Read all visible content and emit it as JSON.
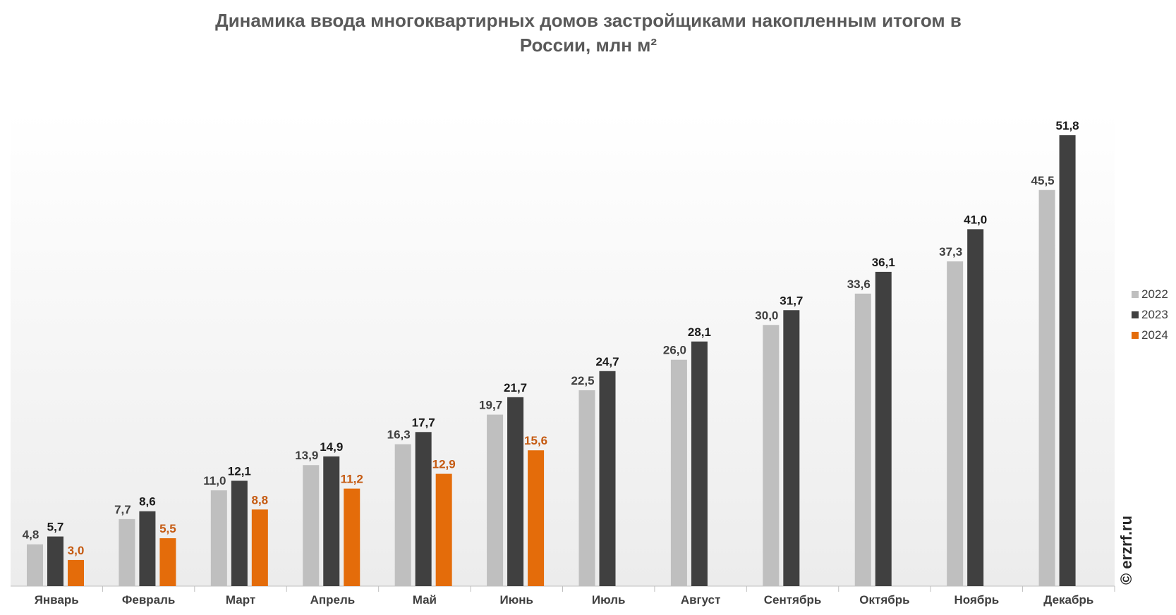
{
  "chart_data": {
    "type": "bar",
    "title": "Динамика ввода многоквартирных домов застройщиками накопленным итогом в России, млн м²",
    "title_lines": [
      "Динамика ввода многоквартирных домов застройщиками накопленным итогом в",
      "России, млн м²"
    ],
    "categories": [
      "Январь",
      "Февраль",
      "Март",
      "Апрель",
      "Май",
      "Июнь",
      "Июль",
      "Август",
      "Сентябрь",
      "Октябрь",
      "Ноябрь",
      "Декабрь"
    ],
    "series": [
      {
        "name": "2022",
        "color": "#bfbfbf",
        "label_color": "#404040",
        "values": [
          4.8,
          7.7,
          11.0,
          13.9,
          16.3,
          19.7,
          22.5,
          26.0,
          30.0,
          33.6,
          37.3,
          45.5
        ],
        "labels": [
          "4,8",
          "7,7",
          "11,0",
          "13,9",
          "16,3",
          "19,7",
          "22,5",
          "26,0",
          "30,0",
          "33,6",
          "37,3",
          "45,5"
        ]
      },
      {
        "name": "2023",
        "color": "#404040",
        "label_color": "#1a1a1a",
        "values": [
          5.7,
          8.6,
          12.1,
          14.9,
          17.7,
          21.7,
          24.7,
          28.1,
          31.7,
          36.1,
          41.0,
          51.8
        ],
        "labels": [
          "5,7",
          "8,6",
          "12,1",
          "14,9",
          "17,7",
          "21,7",
          "24,7",
          "28,1",
          "31,7",
          "36,1",
          "41,0",
          "51,8"
        ]
      },
      {
        "name": "2024",
        "color": "#e46c0a",
        "label_color": "#c55a11",
        "values": [
          3.0,
          5.5,
          8.8,
          11.2,
          12.9,
          15.6,
          null,
          null,
          null,
          null,
          null,
          null
        ],
        "labels": [
          "3,0",
          "5,5",
          "8,8",
          "11,2",
          "12,9",
          "15,6",
          "",
          "",
          "",
          "",
          "",
          ""
        ]
      }
    ],
    "ylim": [
      0,
      56
    ],
    "grid": false,
    "legend_position": "right",
    "watermark": "© erzrf.ru"
  }
}
